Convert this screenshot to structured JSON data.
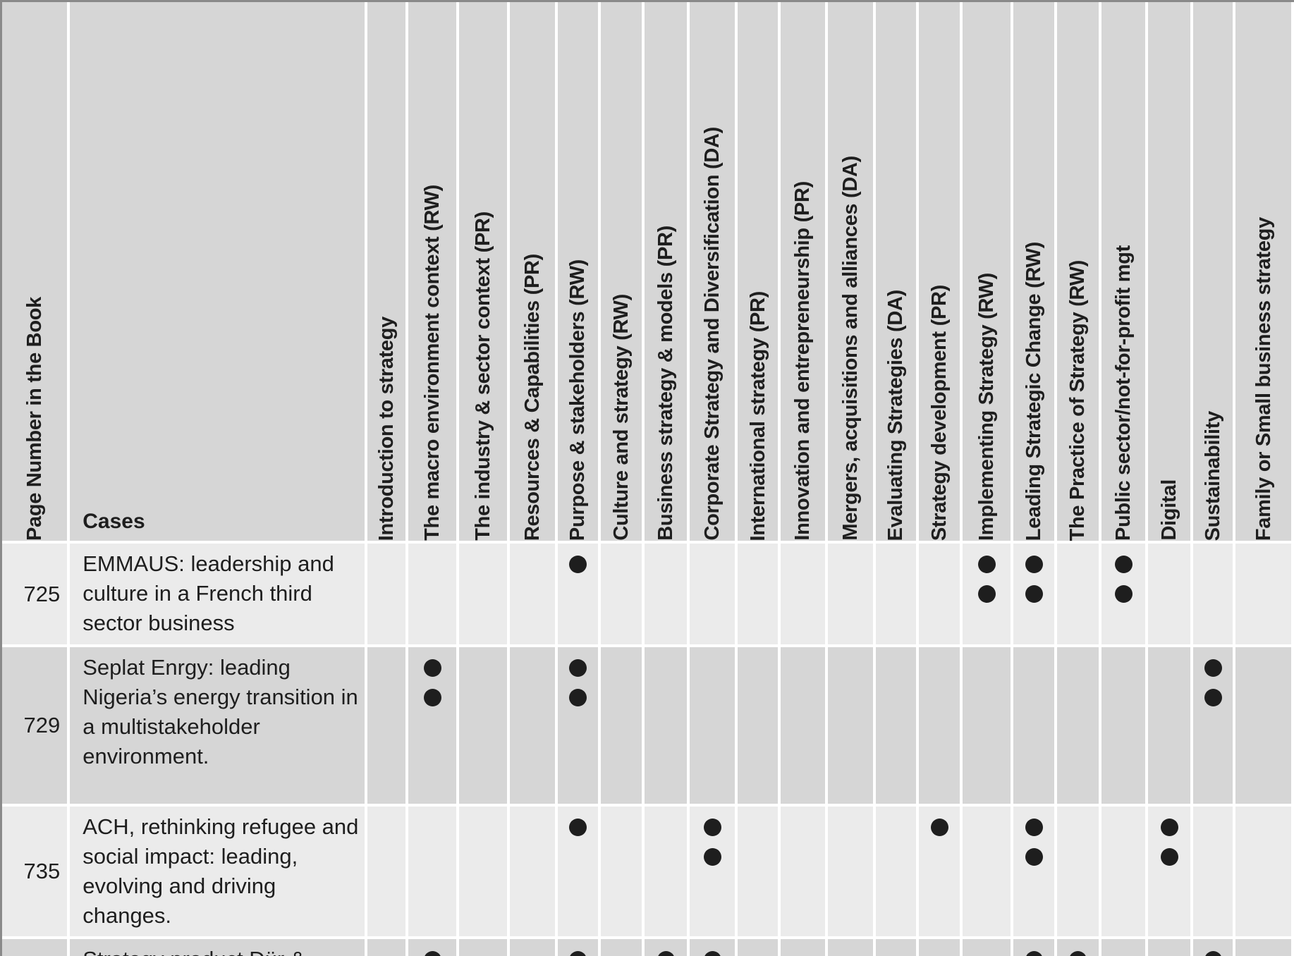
{
  "header": {
    "page_number": "Page Number in the Book",
    "cases": "Cases",
    "topics": [
      "Introduction to strategy",
      "The macro environment context (RW)",
      "The industry & sector context (PR)",
      "Resources & Capabilities (PR)",
      "Purpose & stakeholders (RW)",
      "Culture and strategy (RW)",
      "Business strategy & models (PR)",
      "Corporate Strategy and Diversification (DA)",
      "International strategy (PR)",
      "Innovation and entrepreneurship (PR)",
      "Mergers, acquisitions and alliances (DA)",
      "Evaluating Strategies (DA)",
      "Strategy development (PR)",
      "Implementing Strategy (RW)",
      "Leading Strategic Change (RW)",
      "The Practice of Strategy (RW)",
      "Public sector/not-for-profit mgt",
      "Digital",
      "Sustainability",
      "Family or Small business strategy"
    ]
  },
  "rows": [
    {
      "page": "725",
      "case": "EMMAUS: leadership and culture in a French third sector business",
      "marks": {
        "Purpose & stakeholders (RW)": 1,
        "Implementing Strategy (RW)": 2,
        "Leading Strategic Change (RW)": 2,
        "Public sector/not-for-profit mgt": 2
      }
    },
    {
      "page": "729",
      "case": "Seplat Enrgy: leading Nigeria’s energy transition in a multistakeholder environment.",
      "marks": {
        "The macro environment context (RW)": 2,
        "Purpose & stakeholders (RW)": 2,
        "Sustainability": 2
      }
    },
    {
      "page": "735",
      "case": "ACH, rethinking refugee and social impact: leading, evolving and driving changes.",
      "marks": {
        "Purpose & stakeholders (RW)": 1,
        "Corporate Strategy and Diversification (DA)": 2,
        "Strategy development (PR)": 1,
        "Leading Strategic Change (RW)": 2,
        "Digital": 2
      }
    },
    {
      "page": "",
      "case": "Strategy product Dür &",
      "marks": {
        "The macro environment context (RW)": 1,
        "Purpose & stakeholders (RW)": 1,
        "Business strategy & models (PR)": 1,
        "Corporate Strategy and Diversification (DA)": 1,
        "Leading Strategic Change (RW)": 1,
        "The Practice of Strategy (RW)": 1,
        "Sustainability": 1
      }
    }
  ],
  "colors": {
    "header_bg": "#d6d6d6",
    "row_light": "#ebebeb",
    "row_dark": "#d6d6d6",
    "dot": "#1e1e1e"
  }
}
